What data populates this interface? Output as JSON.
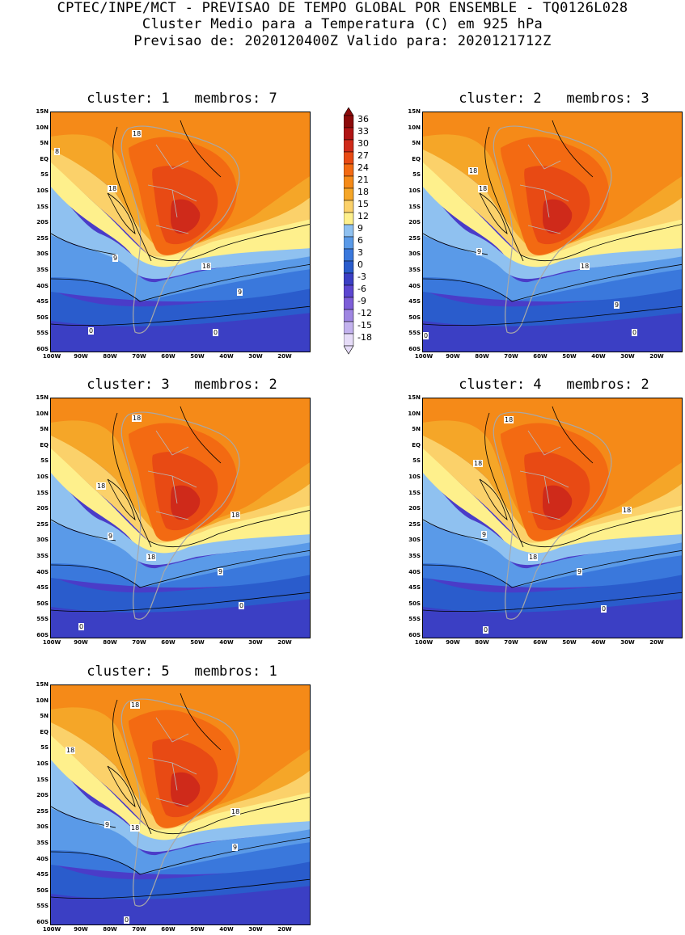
{
  "header": {
    "line1": "CPTEC/INPE/MCT - PREVISAO DE TEMPO GLOBAL POR ENSEMBLE - TQ0126L028",
    "line2": "Cluster Medio para a Temperatura (C) em 925 hPa",
    "line3": "Previsao de: 2020120400Z   Valido para: 2020121712Z"
  },
  "panels": [
    {
      "title": "cluster: 1   membros: 7",
      "contour_labels": [
        "18",
        "8",
        "18",
        "9",
        "18",
        "9",
        "0",
        "0"
      ]
    },
    {
      "title": "cluster: 2   membros: 3",
      "contour_labels": [
        "18",
        "18",
        "9",
        "18",
        "9",
        "0",
        "0"
      ]
    },
    {
      "title": "cluster: 3   membros: 2",
      "contour_labels": [
        "18",
        "18",
        "18",
        "9",
        "18",
        "9",
        "0",
        "0"
      ]
    },
    {
      "title": "cluster: 4   membros: 2",
      "contour_labels": [
        "18",
        "18",
        "18",
        "9",
        "18",
        "9",
        "0",
        "0"
      ]
    },
    {
      "title": "cluster: 5   membros: 1",
      "contour_labels": [
        "18",
        "18",
        "18",
        "9",
        "18",
        "9",
        "0"
      ]
    }
  ],
  "lat_labels": [
    "15N",
    "10N",
    "5N",
    "EQ",
    "5S",
    "10S",
    "15S",
    "20S",
    "25S",
    "30S",
    "35S",
    "40S",
    "45S",
    "50S",
    "55S",
    "60S"
  ],
  "lon_labels": [
    "100W",
    "90W",
    "80W",
    "70W",
    "60W",
    "50W",
    "40W",
    "30W",
    "20W"
  ],
  "colorbar": {
    "labels": [
      "36",
      "33",
      "30",
      "27",
      "24",
      "21",
      "18",
      "15",
      "12",
      "9",
      "6",
      "3",
      "0",
      "-3",
      "-6",
      "-9",
      "-12",
      "-15",
      "-18"
    ],
    "colors": [
      "#8c0a0a",
      "#b01414",
      "#cf2a1a",
      "#e84a14",
      "#f36a12",
      "#f58a18",
      "#f5a628",
      "#fbd16a",
      "#fef08c",
      "#8fc1f0",
      "#5a9ae8",
      "#3a78dc",
      "#2a5ccc",
      "#3b3fc4",
      "#5c46d0",
      "#7d5ed8",
      "#9f86e2",
      "#c3b2ee",
      "#e6dcf8"
    ]
  }
}
